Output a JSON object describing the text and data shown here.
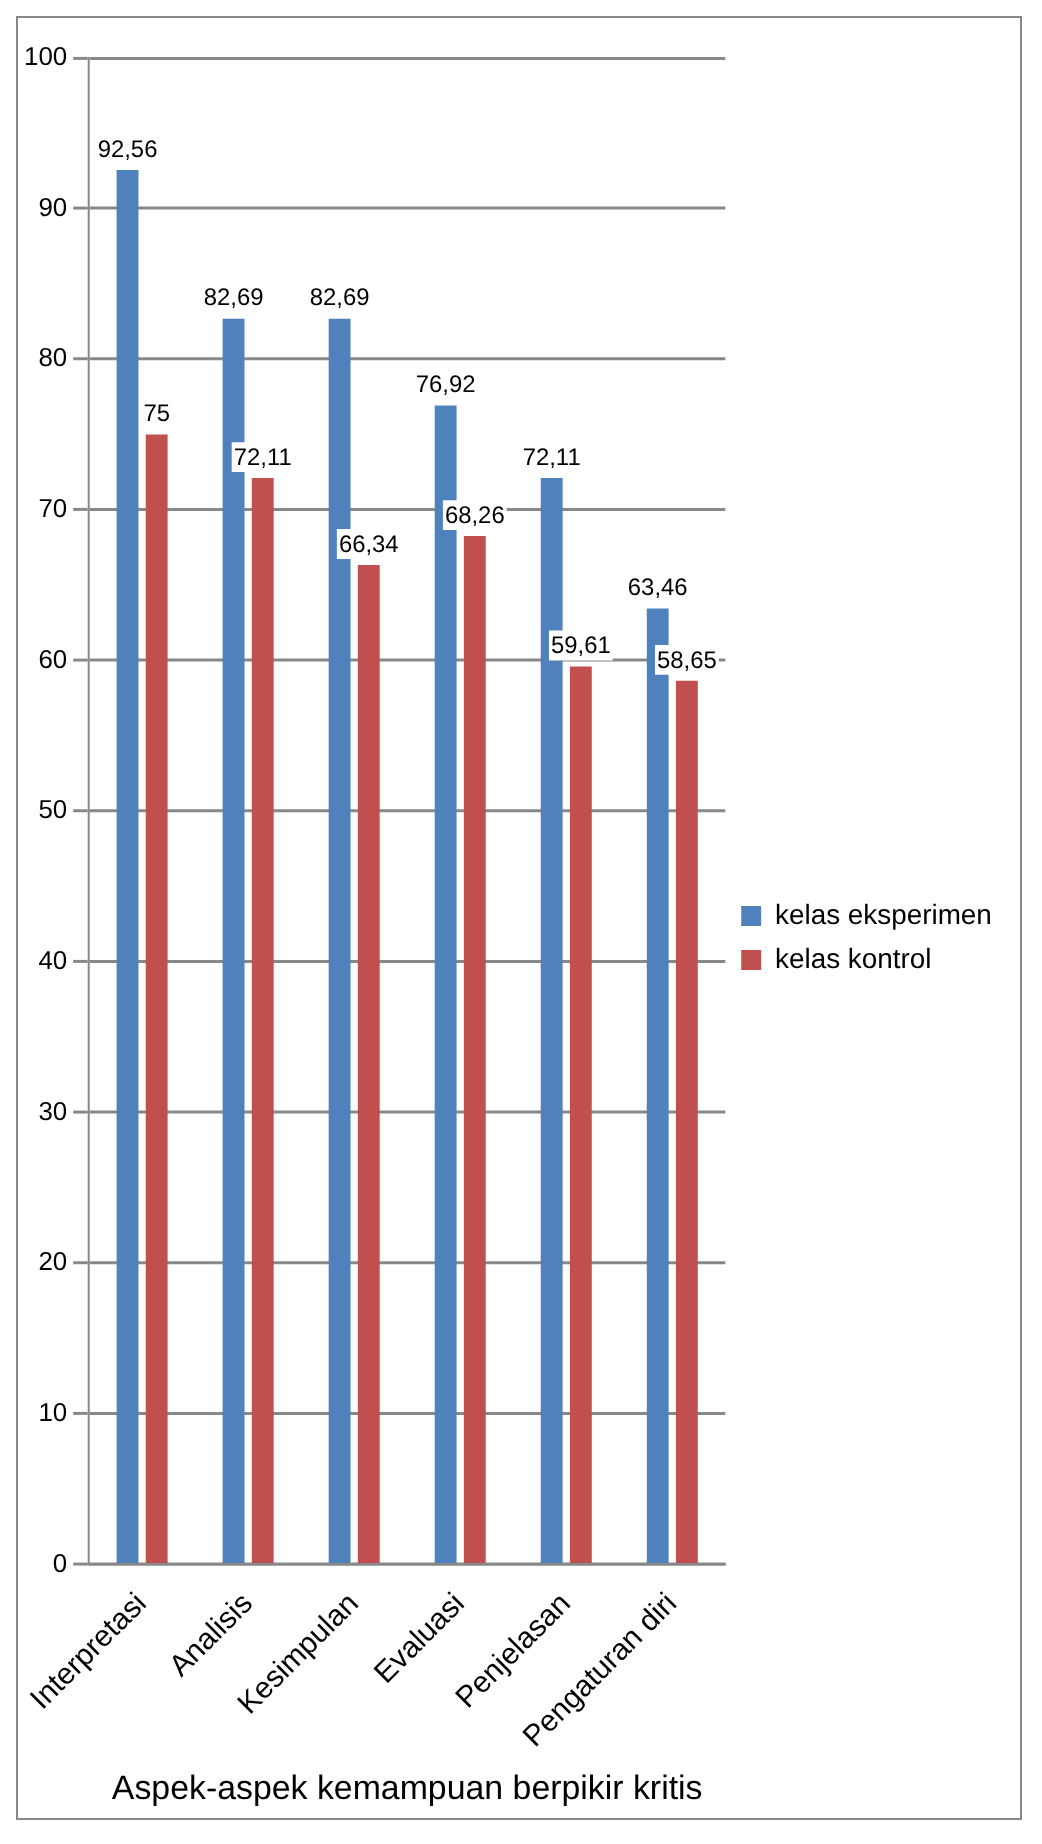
{
  "chart_data": {
    "type": "bar",
    "xlabel": "Aspek-aspek kemampuan berpikir kritis",
    "categories": [
      "Interpretasi",
      "Analisis",
      "Kesimpulan",
      "Evaluasi",
      "Penjelasan",
      "Pengaturan diri"
    ],
    "series": [
      {
        "name": "kelas eksperimen",
        "color": "#4f81bd",
        "values": [
          92.56,
          82.69,
          82.69,
          76.92,
          72.11,
          63.46
        ],
        "value_labels": [
          "92,56",
          "82,69",
          "82,69",
          "76,92",
          "72,11",
          "63,46"
        ]
      },
      {
        "name": "kelas kontrol",
        "color": "#c0504d",
        "values": [
          75,
          72.11,
          66.34,
          68.26,
          59.61,
          58.65
        ],
        "value_labels": [
          "75",
          "72,11",
          "66,34",
          "68,26",
          "59,61",
          "58,65"
        ]
      }
    ],
    "ylim": [
      0,
      100
    ],
    "yticks": [
      0,
      10,
      20,
      30,
      40,
      50,
      60,
      70,
      80,
      90,
      100
    ],
    "grid": "y",
    "legend": "right"
  }
}
